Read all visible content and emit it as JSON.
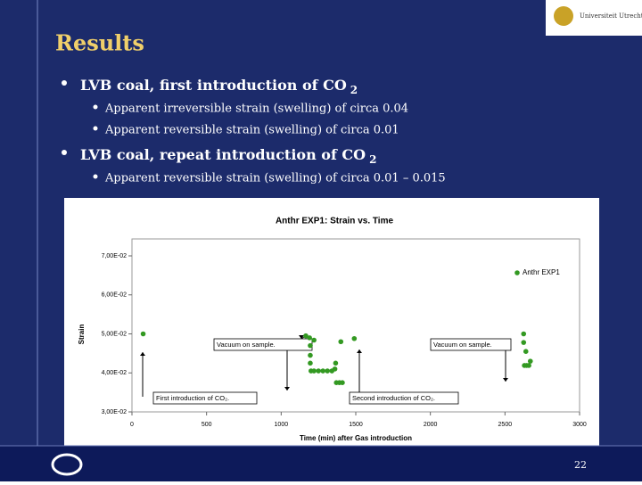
{
  "slide": {
    "logo_text": "Universiteit Utrecht",
    "title": "Results",
    "bullets": [
      {
        "text": "LVB coal, first introduction of CO",
        "sub": "2",
        "items": [
          "Apparent irreversible strain (swelling) of circa 0.04",
          "Apparent reversible strain (swelling) of circa 0.01"
        ]
      },
      {
        "text": "LVB coal, repeat introduction of CO",
        "sub": "2",
        "items": [
          "Apparent reversible strain (swelling) of circa 0.01 – 0.015"
        ]
      }
    ],
    "page_number": "22"
  },
  "chart_data": {
    "type": "scatter",
    "title": "Anthr EXP1: Strain vs. Time",
    "x_label": "Time (min) after Gas introduction",
    "y_label": "Strain",
    "annotations": [
      "Vacuum on sample.",
      "First introduction of CO₂.",
      "Second introduction of CO₂.",
      "Vacuum on sample."
    ],
    "xlim": [
      0,
      3000
    ],
    "xticks": [
      0,
      500,
      1000,
      1500,
      2000,
      2500,
      3000
    ],
    "ylim": [
      0.03,
      0.07
    ],
    "yticks": [
      {
        "value": 0.03,
        "label": "3,00E-02"
      },
      {
        "value": 0.04,
        "label": "4,00E-02"
      },
      {
        "value": 0.05,
        "label": "5,00E-02"
      },
      {
        "value": 0.06,
        "label": "6,00E-02"
      },
      {
        "value": 0.07,
        "label": "7,00E-02"
      }
    ],
    "legend": "upper right",
    "series": [
      {
        "name": "Anthr EXP1",
        "color": "#339922",
        "x": [
          75,
          1165,
          1190,
          1195,
          1195,
          1195,
          1200,
          1220,
          1250,
          1280,
          1310,
          1340,
          1360,
          1365,
          1370,
          1390,
          1410,
          1220,
          1400,
          1490,
          2625,
          2625,
          2640,
          2630,
          2645,
          2660,
          2670
        ],
        "values": [
          0.05,
          0.0495,
          0.049,
          0.047,
          0.0445,
          0.0425,
          0.0405,
          0.0405,
          0.0405,
          0.0405,
          0.0405,
          0.0405,
          0.041,
          0.0425,
          0.0375,
          0.0375,
          0.0375,
          0.0484,
          0.048,
          0.0488,
          0.05,
          0.0478,
          0.0455,
          0.0419,
          0.0419,
          0.0419,
          0.043
        ]
      }
    ]
  }
}
